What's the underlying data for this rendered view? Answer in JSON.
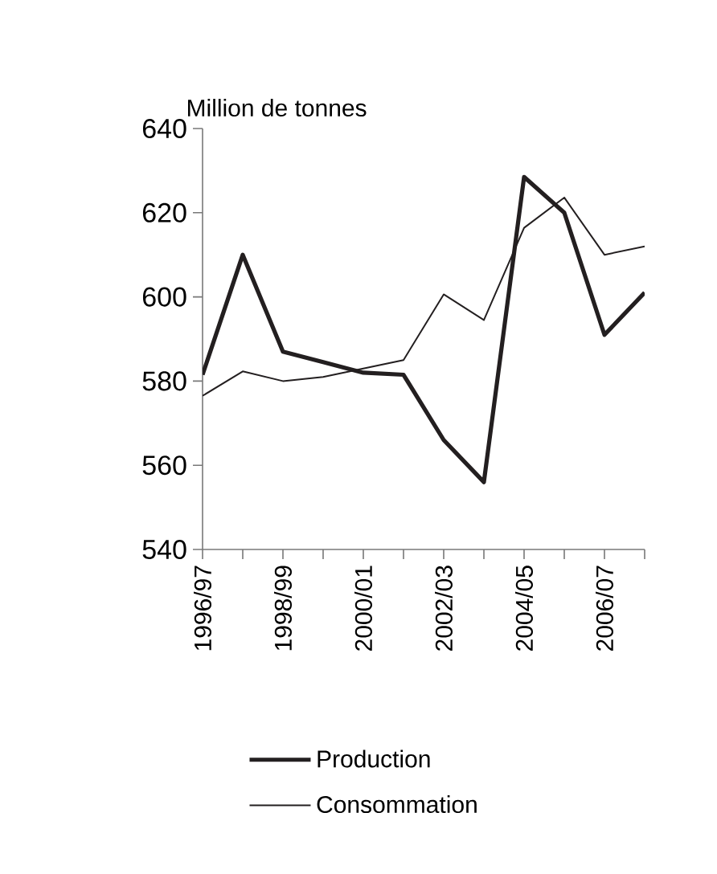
{
  "chart_data": {
    "type": "line",
    "ylabel": "Million de tonnes",
    "categories": [
      "1996/97",
      null,
      "1998/99",
      null,
      "2000/01",
      null,
      "2002/03",
      null,
      "2004/05",
      null,
      "2006/07",
      null
    ],
    "series": [
      {
        "name": "Production",
        "color": "#231f20",
        "values": [
          581.5,
          610,
          587,
          584.5,
          582,
          581.5,
          566,
          556,
          628.5,
          620,
          591,
          601
        ]
      },
      {
        "name": "Consommation",
        "color": "#231f20",
        "values": [
          576.5,
          582.3,
          580,
          581,
          583,
          585,
          600.6,
          594.5,
          616.4,
          623.6,
          610,
          612
        ]
      }
    ],
    "ylim": [
      540,
      640
    ],
    "yticks": [
      540,
      560,
      580,
      600,
      620,
      640
    ],
    "grid": false,
    "legend": "bottom",
    "marker": "none",
    "line_style": "solid"
  }
}
